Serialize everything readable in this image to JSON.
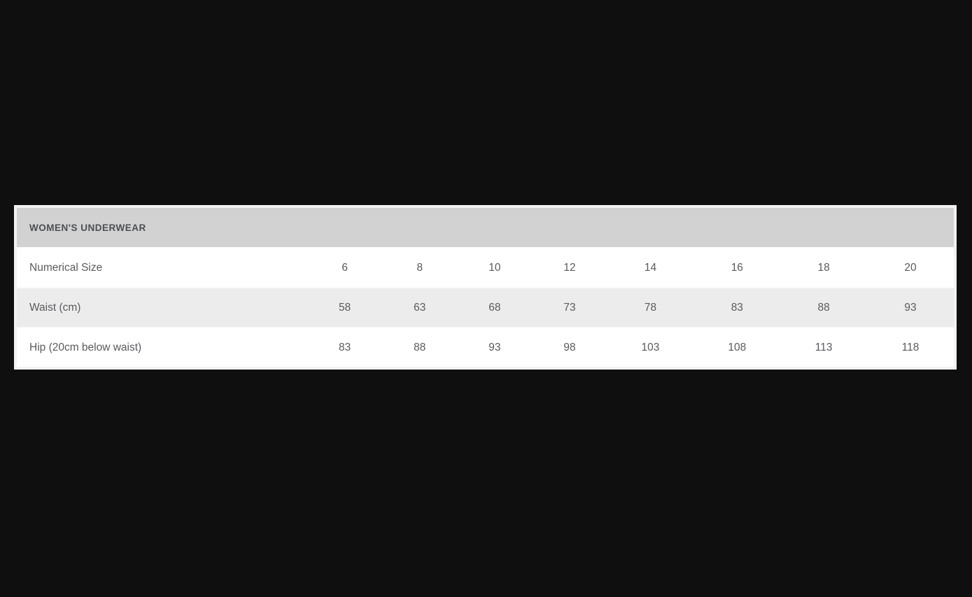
{
  "size_chart": {
    "type": "table",
    "title": "WOMEN'S UNDERWEAR",
    "rows": [
      {
        "label": "Numerical Size",
        "values": [
          "6",
          "8",
          "10",
          "12",
          "14",
          "16",
          "18",
          "20"
        ]
      },
      {
        "label": "Waist (cm)",
        "values": [
          "58",
          "63",
          "68",
          "73",
          "78",
          "83",
          "88",
          "93"
        ]
      },
      {
        "label": "Hip (20cm below waist)",
        "values": [
          "83",
          "88",
          "93",
          "98",
          "103",
          "108",
          "113",
          "118"
        ]
      }
    ]
  },
  "colors": {
    "page_bg": "#100f0f",
    "header_bg": "#d2d2d2",
    "header_text": "#4c4f54",
    "row_bg": "#ffffff",
    "row_alt_bg": "#ececec",
    "body_text": "#595a5e",
    "frame": "#f2f2f2",
    "row_separator": "#fafafa"
  }
}
